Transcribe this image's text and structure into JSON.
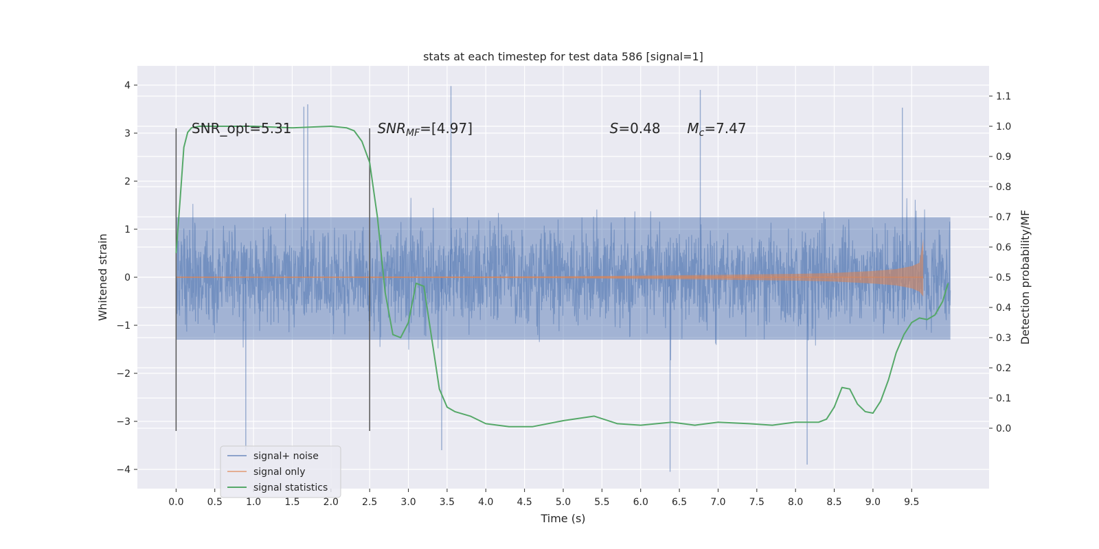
{
  "chart_data": {
    "type": "line",
    "title": "stats at each timestep for test data 586 [signal=1]",
    "xlabel": "Time (s)",
    "ylabel_left": "Whitened strain",
    "ylabel_right": "Detection probability/MF",
    "xlim": [
      -0.5,
      10.5
    ],
    "ylim_left": [
      -4.4,
      4.4
    ],
    "ylim_right": [
      -0.2,
      1.2
    ],
    "x_ticks": [
      "0.0",
      "0.5",
      "1.0",
      "1.5",
      "2.0",
      "2.5",
      "3.0",
      "3.5",
      "4.0",
      "4.5",
      "5.0",
      "5.5",
      "6.0",
      "6.5",
      "7.0",
      "7.5",
      "8.0",
      "8.5",
      "9.0",
      "9.5"
    ],
    "y_left_ticks": [
      "4",
      "3",
      "2",
      "1",
      "0",
      "−1",
      "−2",
      "−3",
      "−4"
    ],
    "y_right_ticks": [
      "1.1",
      "1.0",
      "0.9",
      "0.8",
      "0.7",
      "0.6",
      "0.5",
      "0.4",
      "0.3",
      "0.2",
      "0.1",
      "0.0"
    ],
    "grid": true,
    "background": "#eaeaf2",
    "legend": {
      "location": "lower-left",
      "entries": [
        {
          "label": "signal+ noise",
          "color": "#4c72b0"
        },
        {
          "label": "signal only",
          "color": "#dd8452"
        },
        {
          "label": "signal statistics",
          "color": "#55a868"
        }
      ]
    },
    "series": [
      {
        "name": "signal+ noise",
        "axis": "left",
        "color": "#4c72b0",
        "x_range": [
          0.0,
          10.0
        ],
        "core_band": [
          -1.3,
          1.25
        ],
        "typical_band": [
          -2.0,
          2.0
        ],
        "extreme_peaks": [
          {
            "x": 3.55,
            "y": 3.98
          },
          {
            "x": 6.77,
            "y": 3.9
          },
          {
            "x": 9.38,
            "y": 3.53
          },
          {
            "x": 1.7,
            "y": 3.6
          },
          {
            "x": 1.65,
            "y": 3.55
          },
          {
            "x": 0.9,
            "y": -3.6
          },
          {
            "x": 3.43,
            "y": -3.6
          },
          {
            "x": 6.38,
            "y": -4.05
          },
          {
            "x": 8.15,
            "y": -3.9
          }
        ]
      },
      {
        "name": "signal only",
        "axis": "left",
        "color": "#dd8452",
        "x_range": [
          0.0,
          9.65
        ],
        "envelope": {
          "x": [
            0.0,
            2.0,
            4.0,
            5.0,
            6.0,
            7.0,
            8.0,
            8.5,
            9.0,
            9.3,
            9.5,
            9.6,
            9.65
          ],
          "amplitude": [
            0.01,
            0.012,
            0.015,
            0.02,
            0.035,
            0.05,
            0.07,
            0.09,
            0.13,
            0.17,
            0.23,
            0.3,
            0.8
          ]
        }
      },
      {
        "name": "signal statistics",
        "axis": "right",
        "color": "#55a868",
        "x": [
          0.0,
          0.05,
          0.1,
          0.15,
          0.2,
          0.3,
          0.5,
          1.0,
          1.5,
          2.0,
          2.2,
          2.3,
          2.4,
          2.5,
          2.6,
          2.7,
          2.8,
          2.9,
          3.0,
          3.1,
          3.2,
          3.3,
          3.4,
          3.5,
          3.6,
          3.8,
          4.0,
          4.3,
          4.6,
          5.0,
          5.4,
          5.7,
          6.0,
          6.4,
          6.7,
          7.0,
          7.4,
          7.7,
          8.0,
          8.3,
          8.4,
          8.5,
          8.6,
          8.7,
          8.8,
          8.9,
          9.0,
          9.1,
          9.2,
          9.3,
          9.4,
          9.5,
          9.6,
          9.7,
          9.8,
          9.9,
          9.97
        ],
        "y": [
          0.58,
          0.75,
          0.93,
          0.98,
          0.995,
          1.0,
          1.0,
          1.0,
          0.995,
          1.0,
          0.995,
          0.985,
          0.95,
          0.88,
          0.7,
          0.45,
          0.31,
          0.3,
          0.35,
          0.48,
          0.47,
          0.3,
          0.13,
          0.07,
          0.055,
          0.04,
          0.015,
          0.005,
          0.005,
          0.025,
          0.04,
          0.015,
          0.01,
          0.02,
          0.01,
          0.02,
          0.015,
          0.01,
          0.02,
          0.02,
          0.03,
          0.07,
          0.135,
          0.13,
          0.08,
          0.055,
          0.05,
          0.09,
          0.16,
          0.25,
          0.31,
          0.35,
          0.365,
          0.36,
          0.375,
          0.42,
          0.48
        ]
      }
    ],
    "vertical_lines": [
      {
        "x": 0.0,
        "y_range": [
          -3.2,
          3.1
        ]
      },
      {
        "x": 2.5,
        "y_range": [
          -3.2,
          3.1
        ]
      }
    ],
    "annotations": [
      {
        "id": "snr_opt",
        "text": "SNR_opt=5.31",
        "x": 0.2,
        "y": 3.1
      },
      {
        "id": "snr_mf",
        "text": "SNR",
        "sub": "MF",
        "italic": true,
        "suffix": "=[4.97]",
        "x": 2.6,
        "y": 3.1
      },
      {
        "id": "s",
        "text": "S",
        "italic": true,
        "suffix": "=0.48",
        "x": 5.6,
        "y": 3.1
      },
      {
        "id": "mc",
        "text": "M",
        "sub": "c",
        "italic": true,
        "suffix": "=7.47",
        "x": 6.6,
        "y": 3.1
      }
    ]
  }
}
